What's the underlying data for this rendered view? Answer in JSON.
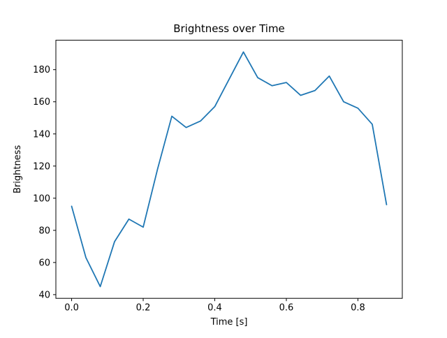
{
  "figure": {
    "background": "#ffffff"
  },
  "chart_data": {
    "type": "line",
    "title": "Brightness over Time",
    "xlabel": "Time [s]",
    "ylabel": "Brightness",
    "x": [
      0.0,
      0.04,
      0.08,
      0.12,
      0.16,
      0.2,
      0.24,
      0.28,
      0.32,
      0.36,
      0.4,
      0.44,
      0.48,
      0.52,
      0.56,
      0.6,
      0.64,
      0.68,
      0.72,
      0.76,
      0.8,
      0.84,
      0.88
    ],
    "y": [
      95,
      63,
      45,
      73,
      87,
      82,
      118,
      151,
      144,
      148,
      157,
      174,
      191,
      175,
      170,
      172,
      164,
      167,
      176,
      160,
      156,
      146,
      96
    ],
    "line_color": "#1f77b4",
    "line_width": 1.8,
    "xlim": [
      -0.044,
      0.924
    ],
    "ylim": [
      37.7,
      198.3
    ],
    "xticks": {
      "values": [
        0.0,
        0.2,
        0.4,
        0.6,
        0.8
      ],
      "labels": [
        "0.0",
        "0.2",
        "0.4",
        "0.6",
        "0.8"
      ]
    },
    "yticks": {
      "values": [
        40,
        60,
        80,
        100,
        120,
        140,
        160,
        180
      ],
      "labels": [
        "40",
        "60",
        "80",
        "100",
        "120",
        "140",
        "160",
        "180"
      ]
    },
    "grid": false,
    "legend": "none",
    "spine_color": "#000000"
  }
}
